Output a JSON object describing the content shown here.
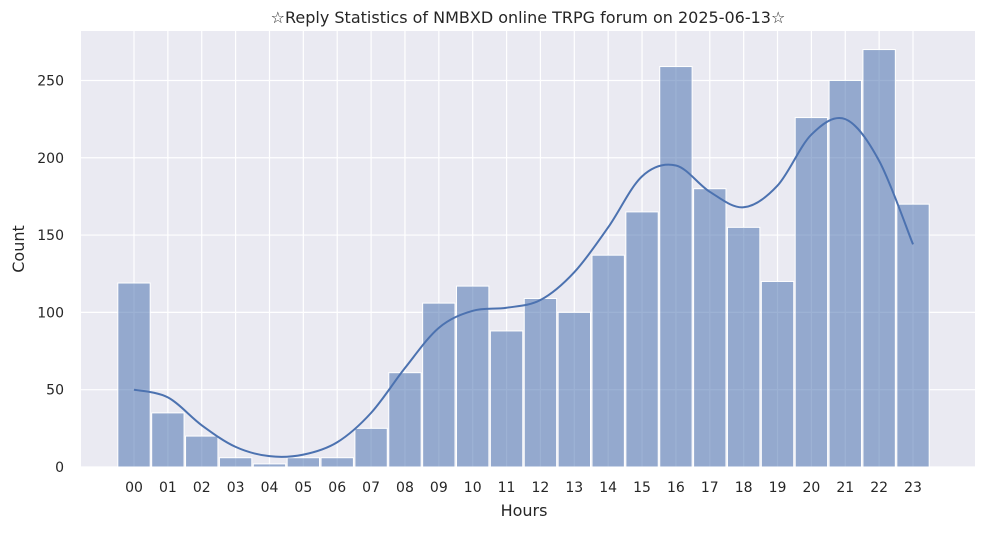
{
  "chart_data": {
    "type": "bar",
    "title": "☆Reply Statistics of NMBXD online TRPG forum on 2025-06-13☆",
    "xlabel": "Hours",
    "ylabel": "Count",
    "categories": [
      "00",
      "01",
      "02",
      "03",
      "04",
      "05",
      "06",
      "07",
      "08",
      "09",
      "10",
      "11",
      "12",
      "13",
      "14",
      "15",
      "16",
      "17",
      "18",
      "19",
      "20",
      "21",
      "22",
      "23"
    ],
    "values": [
      119,
      35,
      20,
      6,
      2,
      6,
      6,
      25,
      61,
      106,
      117,
      88,
      109,
      100,
      137,
      165,
      259,
      180,
      155,
      120,
      226,
      250,
      270,
      170
    ],
    "kde": {
      "x": [
        "00",
        "01",
        "02",
        "03",
        "04",
        "05",
        "06",
        "07",
        "08",
        "09",
        "10",
        "11",
        "12",
        "13",
        "14",
        "15",
        "16",
        "17",
        "18",
        "19",
        "20",
        "21",
        "22",
        "23"
      ],
      "y": [
        50,
        45,
        27,
        13,
        7,
        8,
        16,
        35,
        64,
        90,
        101,
        103,
        108,
        126,
        155,
        188,
        195,
        178,
        168,
        182,
        215,
        225,
        198,
        144
      ]
    },
    "yticks": [
      0,
      50,
      100,
      150,
      200,
      250
    ],
    "ylim": [
      0,
      282
    ],
    "grid": true,
    "colors": {
      "background": "#EAEAF2",
      "bar": "#4C72B0",
      "bar_opacity": 0.55,
      "line": "#4C72B0",
      "grid": "#FFFFFF"
    }
  }
}
